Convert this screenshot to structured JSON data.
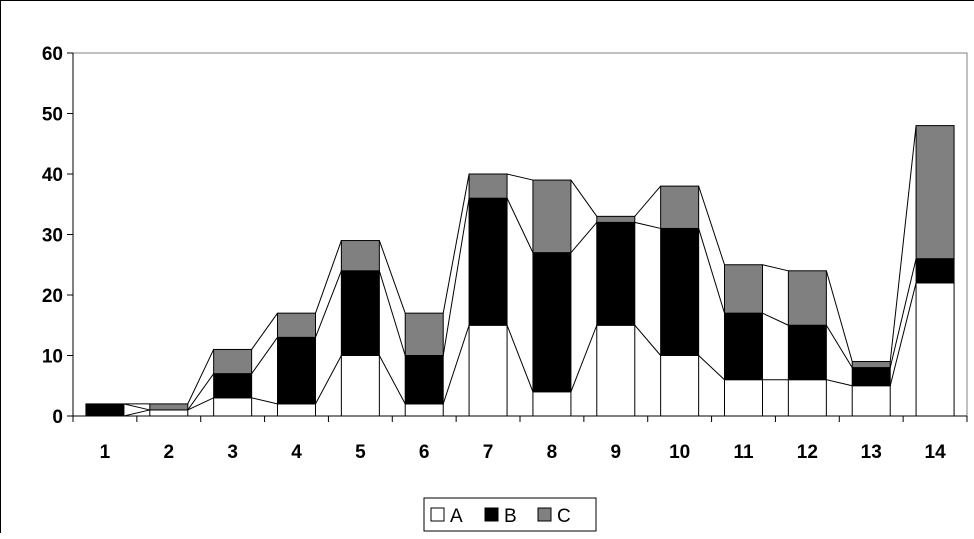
{
  "chart_data": {
    "type": "bar",
    "stacked": true,
    "series_lines": true,
    "categories": [
      "1",
      "2",
      "3",
      "4",
      "5",
      "6",
      "7",
      "8",
      "9",
      "10",
      "11",
      "12",
      "13",
      "14"
    ],
    "series": [
      {
        "name": "A",
        "color": "#ffffff",
        "values": [
          0,
          1,
          3,
          2,
          10,
          2,
          15,
          4,
          15,
          10,
          6,
          6,
          5,
          22
        ]
      },
      {
        "name": "B",
        "color": "#000000",
        "values": [
          2,
          0,
          4,
          11,
          14,
          8,
          21,
          23,
          17,
          21,
          11,
          9,
          3,
          4
        ]
      },
      {
        "name": "C",
        "color": "#808080",
        "values": [
          0,
          1,
          4,
          4,
          5,
          7,
          4,
          12,
          1,
          7,
          8,
          9,
          1,
          22
        ]
      }
    ],
    "yticks": [
      "0",
      "10",
      "20",
      "30",
      "40",
      "50",
      "60"
    ],
    "ylim": [
      0,
      60
    ],
    "title": "",
    "xlabel": "",
    "ylabel": "",
    "grid": false,
    "legend_position": "bottom"
  }
}
